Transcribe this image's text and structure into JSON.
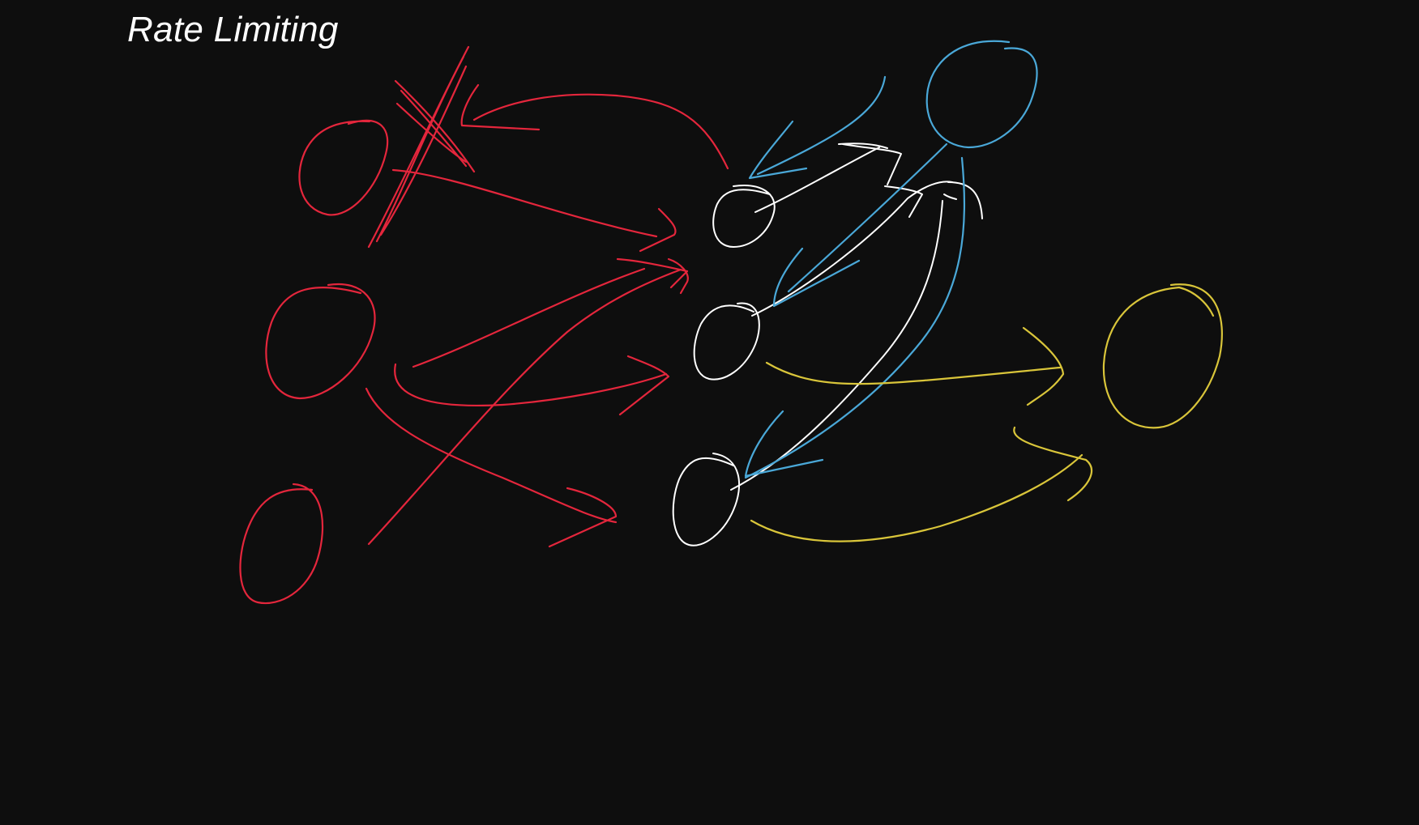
{
  "title": "Rate Limiting",
  "colors": {
    "background": "#0e0e0e",
    "title_text": "#ffffff",
    "clients": "#e4263c",
    "rate_limiter_nodes": "#ffffff",
    "redis_store": "#4aa8d8",
    "backend_service": "#d9c53a"
  }
}
